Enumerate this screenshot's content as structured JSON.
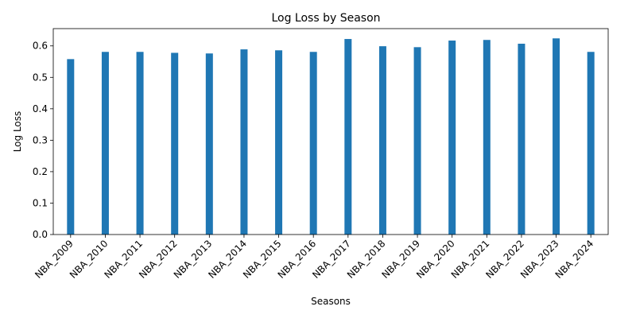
{
  "chart_data": {
    "type": "bar",
    "title": "Log Loss by Season",
    "xlabel": "Seasons",
    "ylabel": "Log Loss",
    "categories": [
      "NBA_2009",
      "NBA_2010",
      "NBA_2011",
      "NBA_2012",
      "NBA_2013",
      "NBA_2014",
      "NBA_2015",
      "NBA_2016",
      "NBA_2017",
      "NBA_2018",
      "NBA_2019",
      "NBA_2020",
      "NBA_2021",
      "NBA_2022",
      "NBA_2023",
      "NBA_2024"
    ],
    "values": [
      0.558,
      0.581,
      0.581,
      0.578,
      0.576,
      0.589,
      0.586,
      0.581,
      0.622,
      0.599,
      0.596,
      0.617,
      0.619,
      0.607,
      0.624,
      0.581
    ],
    "ylim": [
      0,
      0.655
    ],
    "yticks": [
      "0.0",
      "0.1",
      "0.2",
      "0.3",
      "0.4",
      "0.5",
      "0.6"
    ],
    "bar_color": "#1f77b4",
    "grid": false,
    "legend": "none"
  }
}
